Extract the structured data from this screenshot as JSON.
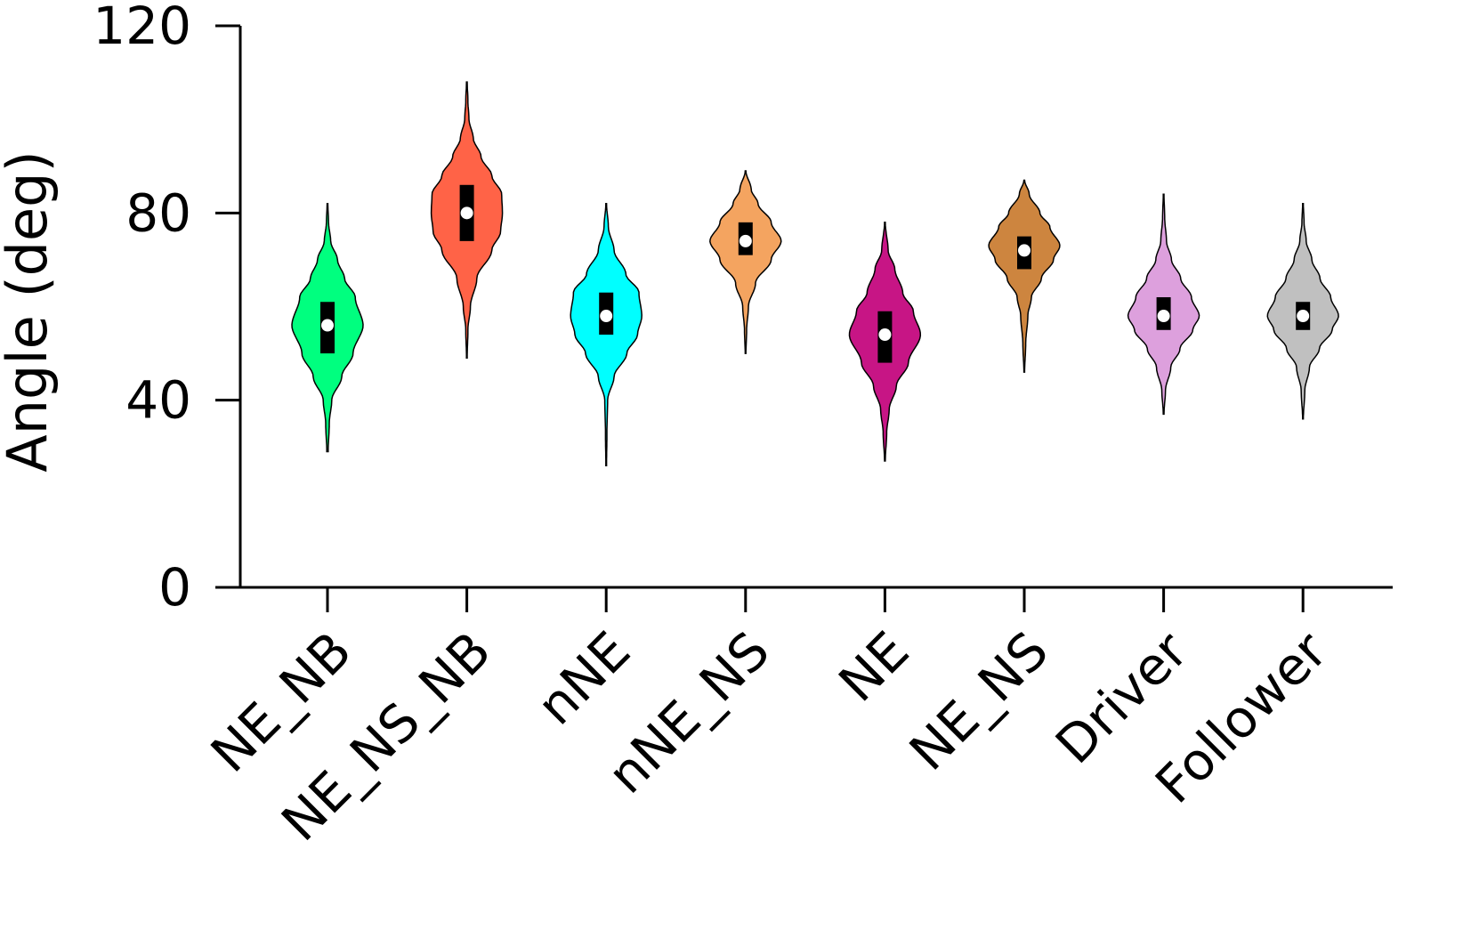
{
  "chart_data": {
    "type": "violin",
    "ylabel": "Angle (deg)",
    "xlabel": "",
    "title": "",
    "ylim": [
      0,
      120
    ],
    "yticks": [
      0,
      40,
      80,
      120
    ],
    "grid": false,
    "legend": "none",
    "categories": [
      "NE_NB",
      "NE_NS_NB",
      "nNE",
      "nNE_NS",
      "NE",
      "NE_NS",
      "Driver",
      "Follower"
    ],
    "series": [
      {
        "category": "NE_NB",
        "color": "#00ff7f",
        "min": 29,
        "max": 82,
        "q1": 50,
        "median": 56,
        "q3": 61,
        "mode": 56,
        "profile": [
          [
            29,
            0.02
          ],
          [
            35,
            0.05
          ],
          [
            40,
            0.12
          ],
          [
            45,
            0.4
          ],
          [
            50,
            0.72
          ],
          [
            56,
            1.0
          ],
          [
            62,
            0.78
          ],
          [
            66,
            0.48
          ],
          [
            70,
            0.28
          ],
          [
            74,
            0.09
          ],
          [
            78,
            0.03
          ],
          [
            82,
            0.01
          ]
        ]
      },
      {
        "category": "NE_NS_NB",
        "color": "#ff6347",
        "min": 49,
        "max": 108,
        "q1": 74,
        "median": 80,
        "q3": 86,
        "mode": 81,
        "profile": [
          [
            49,
            0.01
          ],
          [
            55,
            0.03
          ],
          [
            60,
            0.1
          ],
          [
            66,
            0.28
          ],
          [
            72,
            0.7
          ],
          [
            76,
            0.95
          ],
          [
            80,
            1.0
          ],
          [
            84,
            0.98
          ],
          [
            88,
            0.7
          ],
          [
            92,
            0.4
          ],
          [
            96,
            0.18
          ],
          [
            100,
            0.06
          ],
          [
            104,
            0.03
          ],
          [
            108,
            0.01
          ]
        ]
      },
      {
        "category": "nNE",
        "color": "#00ffff",
        "min": 26,
        "max": 82,
        "q1": 54,
        "median": 58,
        "q3": 63,
        "mode": 58,
        "profile": [
          [
            26,
            0.01
          ],
          [
            33,
            0.02
          ],
          [
            40,
            0.04
          ],
          [
            45,
            0.22
          ],
          [
            50,
            0.58
          ],
          [
            54,
            0.88
          ],
          [
            58,
            1.0
          ],
          [
            63,
            0.92
          ],
          [
            67,
            0.55
          ],
          [
            72,
            0.22
          ],
          [
            77,
            0.06
          ],
          [
            82,
            0.01
          ]
        ]
      },
      {
        "category": "nNE_NS",
        "color": "#f4a460",
        "min": 50,
        "max": 89,
        "q1": 71,
        "median": 74,
        "q3": 78,
        "mode": 75,
        "profile": [
          [
            50,
            0.01
          ],
          [
            55,
            0.03
          ],
          [
            60,
            0.08
          ],
          [
            65,
            0.28
          ],
          [
            70,
            0.72
          ],
          [
            74,
            1.0
          ],
          [
            78,
            0.72
          ],
          [
            82,
            0.35
          ],
          [
            85,
            0.16
          ],
          [
            89,
            0.01
          ]
        ]
      },
      {
        "category": "NE",
        "color": "#c71585",
        "min": 27,
        "max": 78,
        "q1": 48,
        "median": 54,
        "q3": 59,
        "mode": 54,
        "profile": [
          [
            27,
            0.01
          ],
          [
            33,
            0.05
          ],
          [
            38,
            0.12
          ],
          [
            43,
            0.32
          ],
          [
            48,
            0.66
          ],
          [
            54,
            1.0
          ],
          [
            59,
            0.8
          ],
          [
            63,
            0.5
          ],
          [
            68,
            0.28
          ],
          [
            72,
            0.09
          ],
          [
            78,
            0.01
          ]
        ]
      },
      {
        "category": "NE_NS",
        "color": "#cd853f",
        "min": 46,
        "max": 87,
        "q1": 68,
        "median": 72,
        "q3": 75,
        "mode": 73,
        "profile": [
          [
            46,
            0.01
          ],
          [
            52,
            0.04
          ],
          [
            58,
            0.1
          ],
          [
            62,
            0.2
          ],
          [
            66,
            0.48
          ],
          [
            70,
            0.82
          ],
          [
            73,
            1.0
          ],
          [
            77,
            0.72
          ],
          [
            80,
            0.44
          ],
          [
            84,
            0.14
          ],
          [
            87,
            0.01
          ]
        ]
      },
      {
        "category": "Driver",
        "color": "#dda0dd",
        "min": 37,
        "max": 84,
        "q1": 55,
        "median": 58,
        "q3": 62,
        "mode": 58,
        "profile": [
          [
            37,
            0.01
          ],
          [
            42,
            0.05
          ],
          [
            47,
            0.2
          ],
          [
            51,
            0.46
          ],
          [
            55,
            0.82
          ],
          [
            58,
            1.0
          ],
          [
            62,
            0.78
          ],
          [
            66,
            0.48
          ],
          [
            70,
            0.22
          ],
          [
            74,
            0.08
          ],
          [
            79,
            0.03
          ],
          [
            84,
            0.01
          ]
        ]
      },
      {
        "category": "Follower",
        "color": "#c0c0c0",
        "min": 36,
        "max": 82,
        "q1": 55,
        "median": 58,
        "q3": 61,
        "mode": 58,
        "profile": [
          [
            36,
            0.01
          ],
          [
            42,
            0.05
          ],
          [
            47,
            0.18
          ],
          [
            51,
            0.46
          ],
          [
            55,
            0.82
          ],
          [
            58,
            1.0
          ],
          [
            62,
            0.78
          ],
          [
            66,
            0.48
          ],
          [
            70,
            0.25
          ],
          [
            74,
            0.09
          ],
          [
            78,
            0.03
          ],
          [
            82,
            0.01
          ]
        ]
      }
    ]
  }
}
